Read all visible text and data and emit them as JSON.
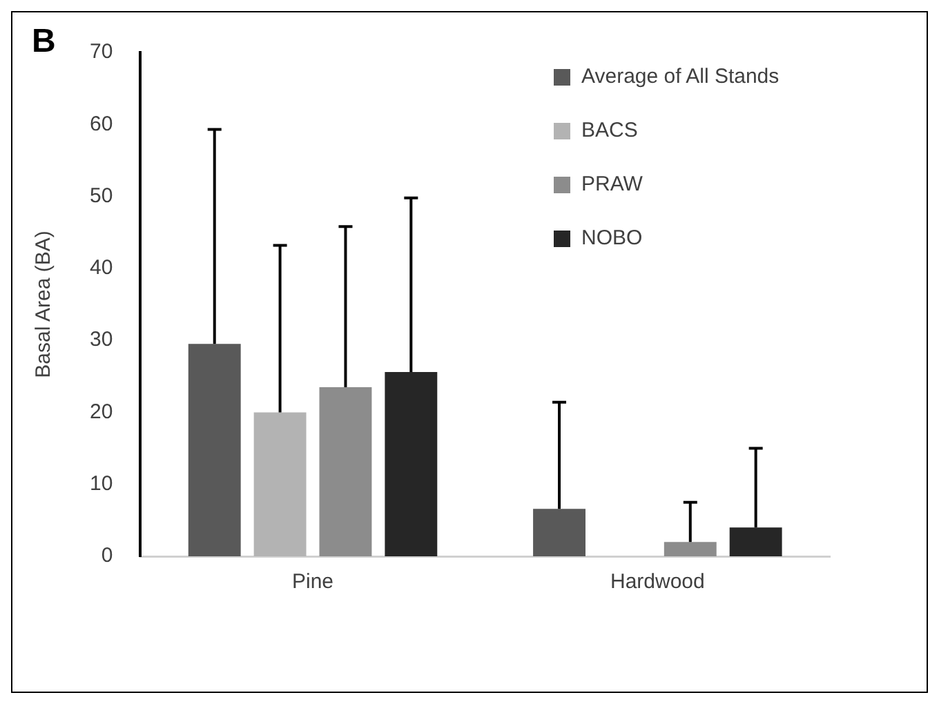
{
  "chart_data": {
    "type": "bar",
    "ylabel": "Basal Area (BA)",
    "categories": [
      "Pine",
      "Hardwood"
    ],
    "series": [
      {
        "name": "Average of All Stands",
        "color": "#595959",
        "values": [
          29.5,
          6.6
        ],
        "errors": [
          [
            29.5,
            59.3
          ],
          [
            6.6,
            21.4
          ]
        ]
      },
      {
        "name": "BACS",
        "color": "#b3b3b3",
        "values": [
          20,
          0
        ],
        "errors": [
          [
            20,
            43.2
          ],
          null
        ]
      },
      {
        "name": "PRAW",
        "color": "#8c8c8c",
        "values": [
          23.5,
          2
        ],
        "errors": [
          [
            23.5,
            45.8
          ],
          [
            2,
            7.5
          ]
        ]
      },
      {
        "name": "NOBO",
        "color": "#262626",
        "values": [
          25.6,
          4
        ],
        "errors": [
          [
            25.6,
            49.8
          ],
          [
            4,
            15
          ]
        ]
      }
    ],
    "ylim": [
      0,
      70
    ],
    "yticks": [
      0,
      10,
      20,
      30,
      40,
      50,
      60,
      70
    ],
    "grid": false,
    "legend": "top right",
    "annotations": [
      "B"
    ]
  }
}
